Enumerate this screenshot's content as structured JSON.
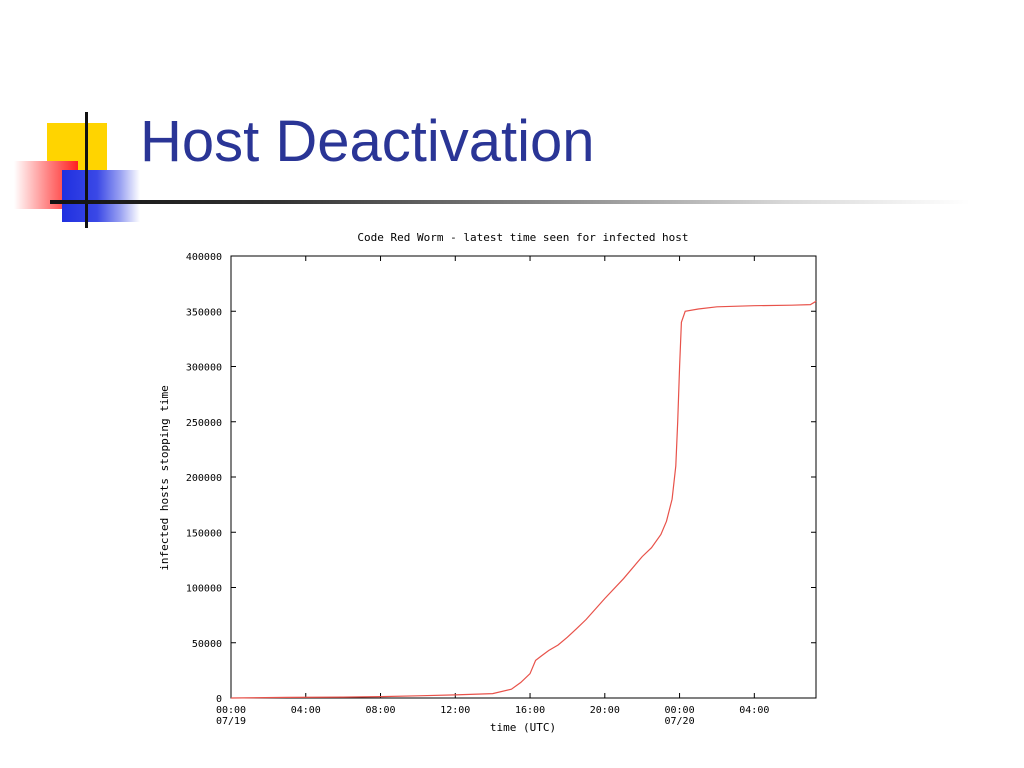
{
  "slide": {
    "title": "Host Deactivation",
    "colors": {
      "title": "#2a3596",
      "accent_yellow": "#ffd400",
      "accent_red": "#ff2020",
      "accent_blue": "#2030e0"
    }
  },
  "chart_data": {
    "type": "line",
    "title": "Code Red Worm - latest time seen for infected host",
    "xlabel": "time (UTC)",
    "ylabel": "infected hosts stopping time",
    "ylim": [
      0,
      400000
    ],
    "xlim": [
      0,
      31.3
    ],
    "yticks": [
      0,
      50000,
      100000,
      150000,
      200000,
      250000,
      300000,
      350000,
      400000
    ],
    "ytick_labels": [
      "0",
      "50000",
      "100000",
      "150000",
      "200000",
      "250000",
      "300000",
      "350000",
      "400000"
    ],
    "xticks": [
      0,
      4,
      8,
      12,
      16,
      20,
      24,
      28
    ],
    "xtick_labels": [
      {
        "time": "00:00",
        "date": "07/19"
      },
      {
        "time": "04:00",
        "date": ""
      },
      {
        "time": "08:00",
        "date": ""
      },
      {
        "time": "12:00",
        "date": ""
      },
      {
        "time": "16:00",
        "date": ""
      },
      {
        "time": "20:00",
        "date": ""
      },
      {
        "time": "00:00",
        "date": "07/20"
      },
      {
        "time": "04:00",
        "date": ""
      }
    ],
    "grid": false,
    "series": [
      {
        "color": "#e8524a",
        "x": [
          0,
          3,
          6,
          8,
          10,
          12,
          14,
          15,
          15.5,
          16,
          16.3,
          16.6,
          17,
          17.5,
          18,
          18.5,
          19,
          20,
          21,
          22,
          22.5,
          23,
          23.3,
          23.6,
          23.8,
          23.9,
          24,
          24.1,
          24.3,
          25,
          26,
          28,
          30,
          31,
          31.3
        ],
        "y": [
          0,
          500,
          800,
          1300,
          2000,
          2800,
          4000,
          8000,
          14000,
          22000,
          34000,
          38000,
          43000,
          48000,
          55000,
          63000,
          71000,
          90000,
          108000,
          128000,
          136000,
          148000,
          160000,
          180000,
          210000,
          250000,
          300000,
          340000,
          350000,
          352000,
          354000,
          355000,
          355500,
          356000,
          359000
        ]
      }
    ]
  }
}
